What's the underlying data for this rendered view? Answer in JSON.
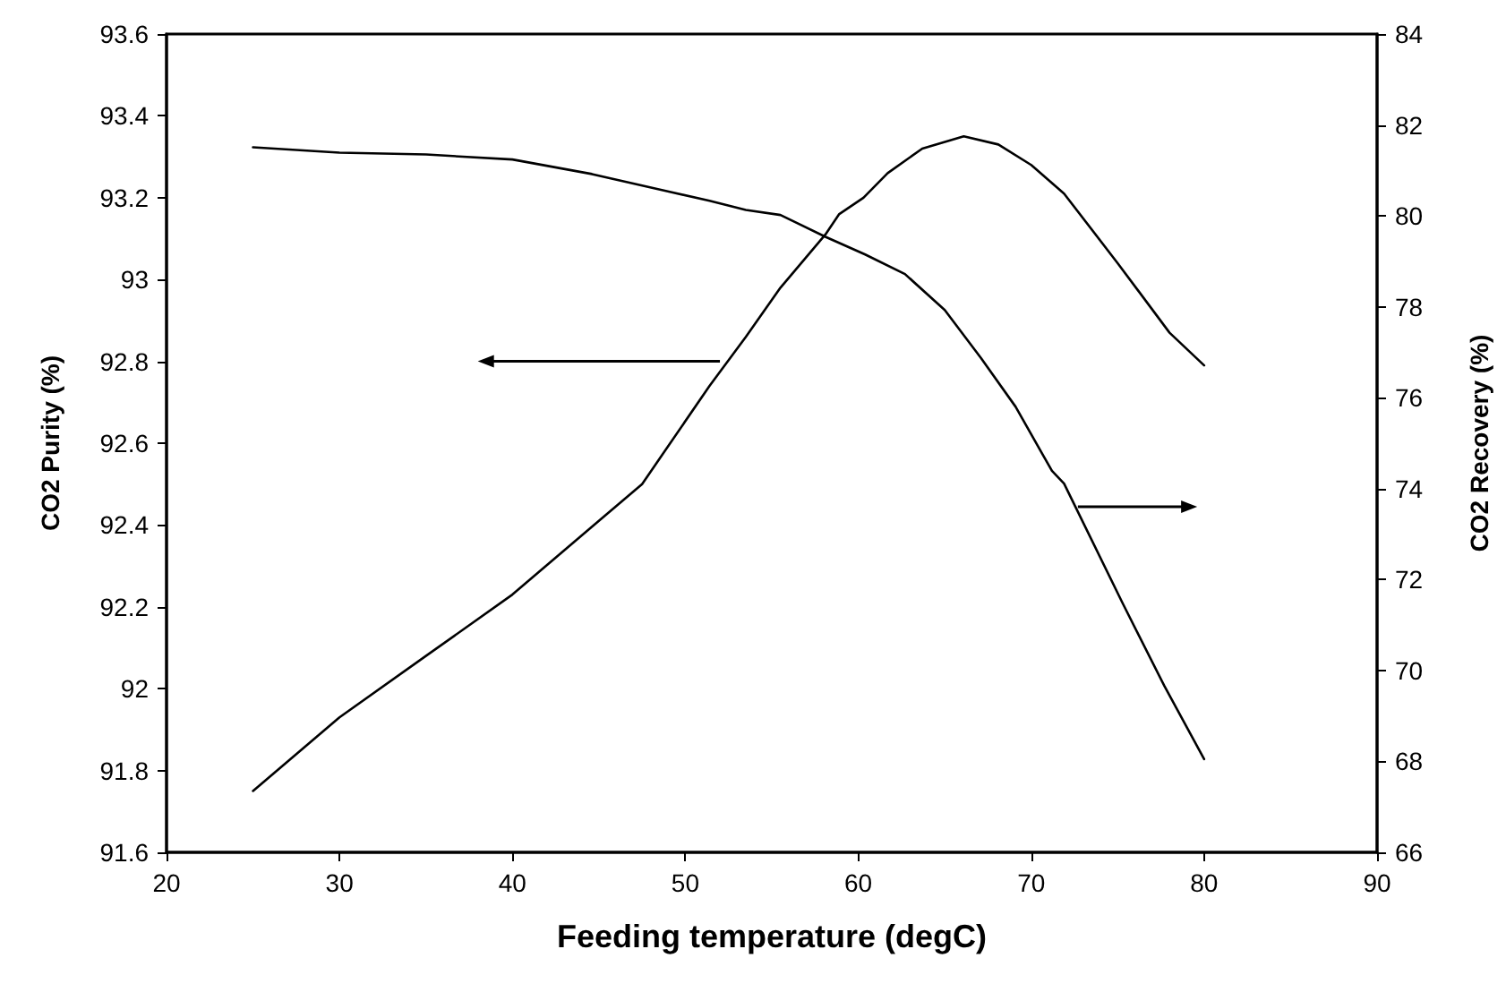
{
  "chart_data": {
    "type": "line",
    "xlabel": "Feeding temperature (degC)",
    "ylabel": "CO2 Purity (%)",
    "y2label": "CO2 Recovery (%)",
    "xlim": [
      20,
      90
    ],
    "xticks": [
      20,
      30,
      40,
      50,
      60,
      70,
      80,
      90
    ],
    "ylim": [
      91.6,
      93.6
    ],
    "yticks": [
      91.6,
      91.8,
      92,
      92.2,
      92.4,
      92.6,
      92.8,
      93,
      93.2,
      93.4,
      93.6
    ],
    "y2lim": [
      66,
      84
    ],
    "y2ticks": [
      66,
      68,
      70,
      72,
      74,
      76,
      78,
      80,
      82,
      84
    ],
    "marker": "none",
    "line_style": "solid",
    "series": [
      {
        "color": "#000000",
        "x": [
          25,
          30,
          35,
          40,
          45,
          47.5,
          51.4,
          53.5,
          55.5,
          58.1,
          58.9,
          60.3,
          61.7,
          63.7,
          66.1,
          68.1,
          70,
          71.9,
          75,
          78,
          80
        ],
        "values": [
          91.75,
          91.93,
          92.08,
          92.23,
          92.41,
          92.5,
          92.74,
          92.86,
          92.98,
          93.11,
          93.16,
          93.2,
          93.26,
          93.32,
          93.35,
          93.33,
          93.28,
          93.21,
          93.04,
          92.87,
          92.79
        ]
      },
      {
        "color": "#000000",
        "axis": "y2",
        "x": [
          25,
          30,
          35,
          40,
          44.6,
          49.1,
          51.4,
          53.5,
          55.5,
          58.1,
          60.4,
          62.7,
          65,
          67.1,
          69.1,
          71.2,
          71.9,
          75.3,
          77.7,
          80
        ],
        "values": [
          81.51,
          81.39,
          81.35,
          81.24,
          80.92,
          80.53,
          80.33,
          80.13,
          80.02,
          79.54,
          79.15,
          78.72,
          77.93,
          76.87,
          75.8,
          74.39,
          74.11,
          71.47,
          69.66,
          68.05
        ]
      }
    ]
  }
}
